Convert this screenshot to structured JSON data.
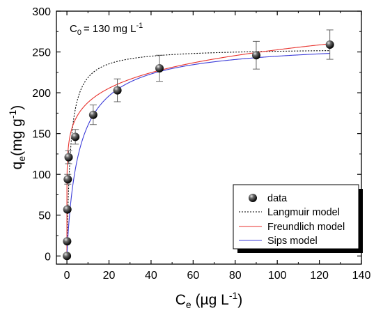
{
  "chart_data": {
    "type": "scatter",
    "xlabel": "C",
    "xlabel_sub": "e",
    "xlabel_unit_prefix": " (µg L",
    "xlabel_unit_sup": "-1",
    "xlabel_unit_suffix": ")",
    "ylabel": "q",
    "ylabel_sub": "e",
    "ylabel_unit_prefix": "(mg g",
    "ylabel_unit_sup": "-1",
    "ylabel_unit_suffix": ")",
    "annotation": {
      "main": "C",
      "sub": "0",
      "text": "= 130 mg L",
      "sup": "-1"
    },
    "xlim": [
      -5,
      140
    ],
    "ylim": [
      -10,
      300
    ],
    "xticks": [
      0,
      20,
      40,
      60,
      80,
      100,
      120,
      140
    ],
    "yticks": [
      0,
      50,
      100,
      150,
      200,
      250,
      300
    ],
    "grid": false,
    "legend_position": "bottom-right",
    "series": [
      {
        "name": "data",
        "kind": "points",
        "color": "#000000",
        "x": [
          0,
          0.1,
          0.2,
          0.4,
          0.8,
          4,
          12.5,
          24,
          44,
          90,
          125
        ],
        "y": [
          0,
          18,
          57,
          94,
          121,
          146,
          173,
          203,
          230,
          246,
          259
        ],
        "err": [
          0,
          0,
          0,
          6,
          8,
          9,
          12,
          14,
          16,
          17,
          18
        ]
      },
      {
        "name": "Langmuir model",
        "kind": "line",
        "style": "dotted",
        "color": "#000000",
        "model": "langmuir",
        "params": {
          "qmax": 255,
          "K": 0.6
        }
      },
      {
        "name": "Freundlich model",
        "kind": "line",
        "style": "solid",
        "color": "#e8322d",
        "model": "freundlich",
        "params": {
          "Kf": 140,
          "n": 7.8
        }
      },
      {
        "name": "Sips model",
        "kind": "line",
        "style": "solid",
        "color": "#3c3cd8",
        "model": "sips",
        "params": {
          "qmax": 265,
          "K": 0.16,
          "n": 0.9
        }
      }
    ]
  }
}
